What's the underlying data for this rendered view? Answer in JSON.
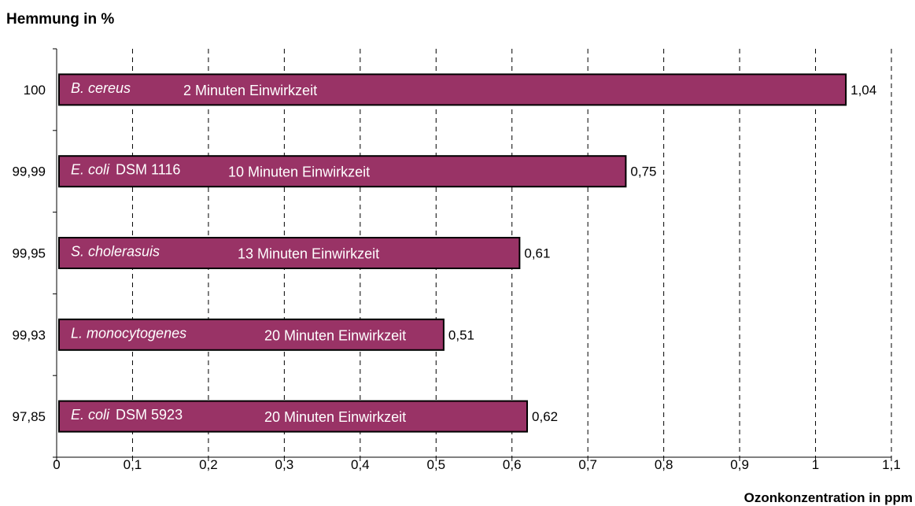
{
  "chart_data": {
    "type": "bar",
    "orientation": "horizontal",
    "ylabel": "Hemmung in %",
    "xlabel": "Ozonkonzentration in ppm",
    "xlim": [
      0,
      1.1
    ],
    "x_ticks": [
      "0",
      "0,1",
      "0,2",
      "0,3",
      "0,4",
      "0,5",
      "0,6",
      "0,7",
      "0,8",
      "0,9",
      "1",
      "1,1"
    ],
    "grid": "vertical-dashed",
    "bar_color": "#993366",
    "bars": [
      {
        "category": "100",
        "value": 1.04,
        "value_label": "1,04",
        "organism": "B. cereus",
        "organism_suffix": "",
        "exposure": "2 Minuten Einwirkzeit"
      },
      {
        "category": "99,99",
        "value": 0.75,
        "value_label": "0,75",
        "organism": "E. coli",
        "organism_suffix": "DSM 1116",
        "exposure": "10 Minuten Einwirkzeit"
      },
      {
        "category": "99,95",
        "value": 0.61,
        "value_label": "0,61",
        "organism": "S. cholerasuis",
        "organism_suffix": "",
        "exposure": "13 Minuten Einwirkzeit"
      },
      {
        "category": "99,93",
        "value": 0.51,
        "value_label": "0,51",
        "organism": "L. monocytogenes",
        "organism_suffix": "",
        "exposure": "20 Minuten Einwirkzeit"
      },
      {
        "category": "97,85",
        "value": 0.62,
        "value_label": "0,62",
        "organism": "E. coli",
        "organism_suffix": "DSM 5923",
        "exposure": "20 Minuten Einwirkzeit"
      }
    ]
  }
}
